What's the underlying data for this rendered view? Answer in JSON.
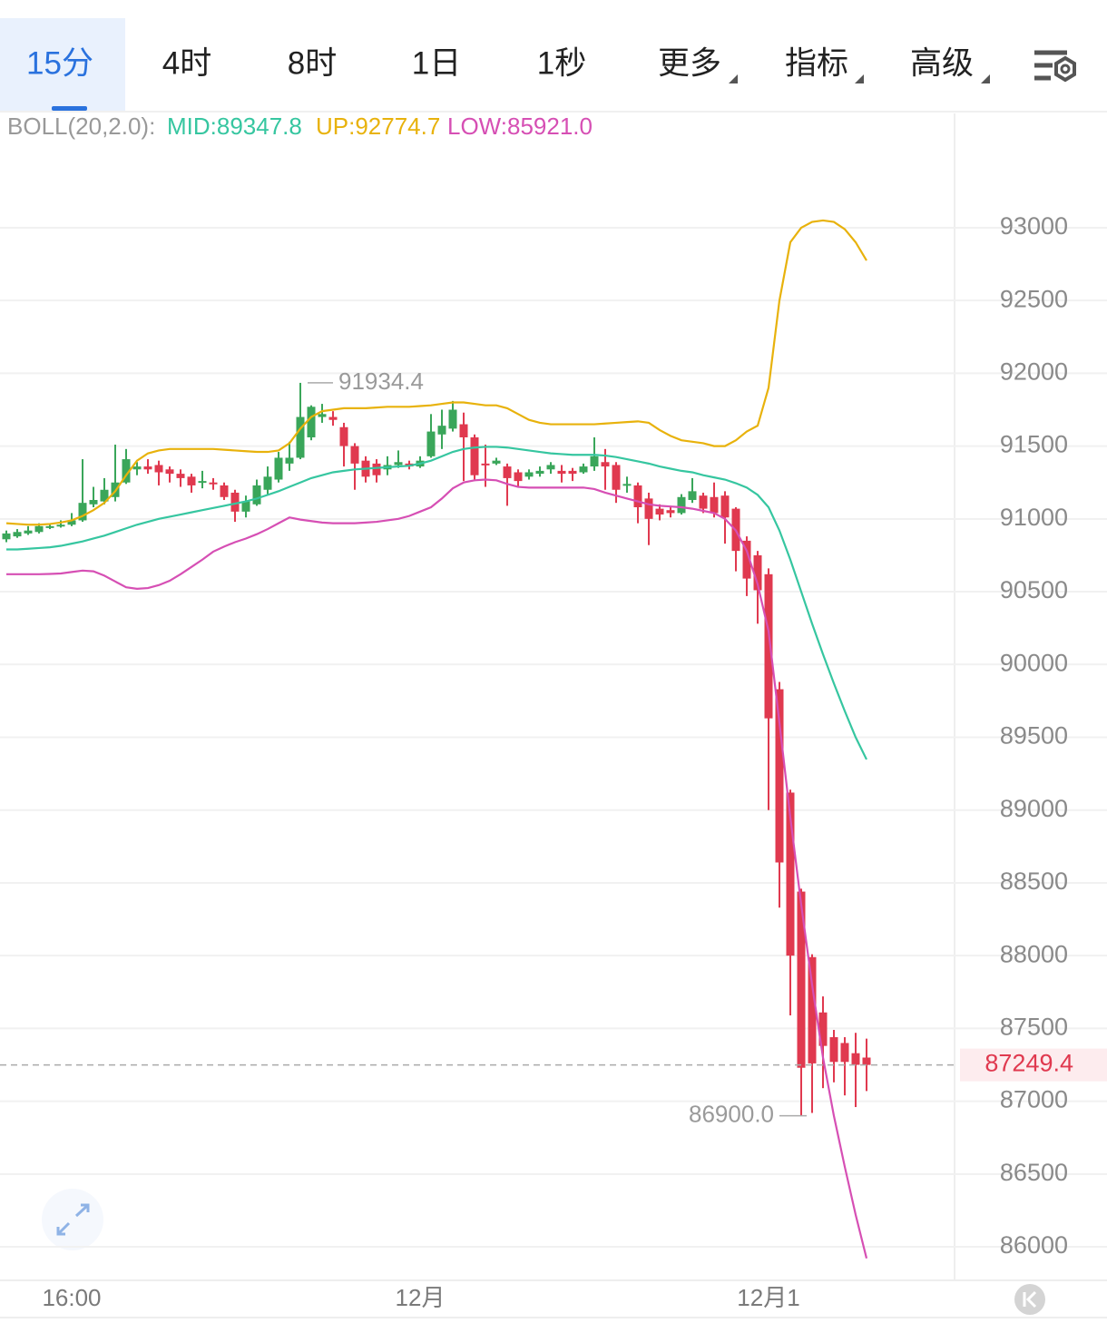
{
  "toolbar": {
    "tabs": [
      "15分",
      "4时",
      "8时",
      "1日",
      "1秒",
      "更多",
      "指标",
      "高级"
    ],
    "active": 0
  },
  "chart_data": {
    "type": "candlestick",
    "indicator": "BOLL(20,2.0):",
    "categories": [
      null,
      null,
      null,
      null,
      null,
      null,
      "16:00",
      null,
      null,
      null,
      null,
      null,
      null,
      null,
      null,
      null,
      null,
      null,
      null,
      null,
      null,
      null,
      null,
      null,
      null,
      null,
      null,
      null,
      null,
      null,
      null,
      null,
      null,
      null,
      null,
      null,
      null,
      null,
      "12月",
      null,
      null,
      null,
      null,
      null,
      null,
      null,
      null,
      null,
      null,
      null,
      null,
      null,
      null,
      null,
      null,
      null,
      null,
      null,
      null,
      null,
      null,
      null,
      null,
      null,
      null,
      null,
      null,
      null,
      null,
      null,
      "12月1",
      null,
      null,
      null,
      null,
      null,
      null,
      null,
      null,
      null
    ],
    "open": [
      90860,
      90880,
      90900,
      90910,
      90940,
      90950,
      90960,
      90990,
      91100,
      91120,
      91150,
      91250,
      91340,
      91360,
      91370,
      91340,
      91310,
      91290,
      91250,
      91250,
      91230,
      91180,
      91050,
      91100,
      91200,
      91270,
      91380,
      91420,
      91560,
      91700,
      91700,
      91630,
      91500,
      91400,
      91380,
      91340,
      91370,
      91380,
      91360,
      91430,
      91580,
      91620,
      91650,
      91560,
      91380,
      91380,
      91360,
      91320,
      91290,
      91310,
      91340,
      91330,
      91330,
      91320,
      91360,
      91390,
      91370,
      91230,
      91230,
      91140,
      91070,
      91060,
      91040,
      91130,
      91160,
      91150,
      91160,
      91070,
      90850,
      90750,
      90620,
      89830,
      89120,
      88440,
      87990,
      87610,
      87440,
      87400,
      87330,
      87300
    ],
    "high": [
      90920,
      90930,
      90950,
      90970,
      90960,
      90990,
      91040,
      91410,
      91220,
      91280,
      91510,
      91480,
      91390,
      91410,
      91400,
      91360,
      91340,
      91310,
      91330,
      91280,
      91250,
      91200,
      91160,
      91270,
      91360,
      91460,
      91530,
      91934.4,
      91780,
      91790,
      91740,
      91660,
      91520,
      91430,
      91410,
      91430,
      91470,
      91400,
      91430,
      91720,
      91750,
      91810,
      91730,
      91580,
      91510,
      91420,
      91380,
      91340,
      91340,
      91360,
      91390,
      91370,
      91350,
      91380,
      91560,
      91480,
      91390,
      91290,
      91250,
      91180,
      91100,
      91090,
      91170,
      91280,
      91180,
      91250,
      91190,
      91080,
      90880,
      90780,
      90660,
      89880,
      89140,
      88460,
      88010,
      87720,
      87490,
      87440,
      87470,
      87430
    ],
    "low": [
      90840,
      90870,
      90890,
      90900,
      90930,
      90940,
      90950,
      90980,
      91080,
      91100,
      91120,
      91240,
      91300,
      91310,
      91230,
      91250,
      91220,
      91180,
      91210,
      91200,
      91130,
      90980,
      91010,
      91090,
      91170,
      91250,
      91330,
      91410,
      91540,
      91660,
      91640,
      91360,
      91200,
      91250,
      91250,
      91300,
      91350,
      91340,
      91350,
      91420,
      91480,
      91600,
      91260,
      91260,
      91220,
      91370,
      91090,
      91220,
      91270,
      91290,
      91310,
      91250,
      91260,
      91310,
      91330,
      91200,
      91110,
      91180,
      90970,
      90820,
      90990,
      91010,
      91030,
      91110,
      91040,
      91010,
      90830,
      90640,
      90470,
      90280,
      89000,
      88330,
      87590,
      86900,
      86920,
      87090,
      87130,
      87040,
      86960,
      87070
    ],
    "close": [
      90900,
      90910,
      90920,
      90950,
      90950,
      90960,
      90990,
      91110,
      91130,
      91200,
      91250,
      91410,
      91360,
      91340,
      91320,
      91310,
      91280,
      91230,
      91260,
      91240,
      91150,
      91050,
      91120,
      91230,
      91290,
      91420,
      91420,
      91700,
      91770,
      91720,
      91680,
      91500,
      91380,
      91290,
      91300,
      91370,
      91390,
      91360,
      91400,
      91600,
      91640,
      91750,
      91560,
      91300,
      91370,
      91400,
      91280,
      91260,
      91320,
      91330,
      91370,
      91310,
      91310,
      91360,
      91430,
      91360,
      91200,
      91240,
      91080,
      91000,
      91030,
      91040,
      91150,
      91190,
      91070,
      91040,
      91010,
      90780,
      90590,
      90510,
      89630,
      88640,
      88000,
      87230,
      87260,
      87380,
      87270,
      87270,
      87250,
      87249.4
    ],
    "up_color": "#3aa65a",
    "down_color": "#e0394f",
    "overlays": [
      {
        "label": "MID:89347.8",
        "color": "#36c6a0",
        "values": [
          90790,
          90790,
          90795,
          90800,
          90805,
          90815,
          90830,
          90845,
          90865,
          90885,
          90910,
          90935,
          90960,
          90980,
          91000,
          91015,
          91030,
          91045,
          91060,
          91075,
          91090,
          91105,
          91120,
          91140,
          91165,
          91190,
          91220,
          91250,
          91280,
          91300,
          91320,
          91330,
          91340,
          91345,
          91350,
          91355,
          91360,
          91365,
          91380,
          91400,
          91430,
          91460,
          91480,
          91490,
          91495,
          91495,
          91490,
          91480,
          91470,
          91460,
          91450,
          91445,
          91440,
          91440,
          91440,
          91435,
          91425,
          91410,
          91395,
          91380,
          91360,
          91345,
          91330,
          91320,
          91300,
          91285,
          91270,
          91245,
          91215,
          91165,
          91080,
          90920,
          90720,
          90500,
          90280,
          90070,
          89870,
          89680,
          89500,
          89347.8
        ]
      },
      {
        "label": "UP:92774.7",
        "color": "#e8b20c",
        "values": [
          90970,
          90965,
          90960,
          90960,
          90965,
          90975,
          90990,
          91020,
          91060,
          91110,
          91190,
          91300,
          91400,
          91450,
          91470,
          91480,
          91480,
          91480,
          91480,
          91480,
          91475,
          91470,
          91465,
          91460,
          91460,
          91470,
          91520,
          91620,
          91700,
          91740,
          91750,
          91760,
          91760,
          91760,
          91765,
          91770,
          91770,
          91770,
          91775,
          91780,
          91790,
          91800,
          91800,
          91790,
          91780,
          91780,
          91760,
          91720,
          91680,
          91660,
          91650,
          91650,
          91650,
          91650,
          91650,
          91655,
          91660,
          91665,
          91670,
          91660,
          91610,
          91570,
          91540,
          91530,
          91520,
          91500,
          91500,
          91540,
          91600,
          91640,
          91900,
          92500,
          92900,
          93000,
          93040,
          93050,
          93040,
          92990,
          92900,
          92774.7
        ]
      },
      {
        "label": "LOW:85921.0",
        "color": "#d64fb4",
        "values": [
          90620,
          90620,
          90620,
          90620,
          90622,
          90625,
          90635,
          90645,
          90640,
          90610,
          90570,
          90530,
          90520,
          90525,
          90545,
          90575,
          90620,
          90670,
          90720,
          90775,
          90810,
          90840,
          90865,
          90895,
          90930,
          90970,
          91010,
          90995,
          90985,
          90975,
          90970,
          90970,
          90970,
          90975,
          90980,
          90990,
          91000,
          91020,
          91050,
          91080,
          91140,
          91210,
          91250,
          91265,
          91270,
          91265,
          91240,
          91220,
          91215,
          91215,
          91215,
          91215,
          91215,
          91215,
          91205,
          91180,
          91160,
          91140,
          91120,
          91100,
          91090,
          91085,
          91080,
          91070,
          91055,
          91040,
          91000,
          90920,
          90780,
          90550,
          90230,
          89600,
          88950,
          88350,
          87800,
          87300,
          86900,
          86550,
          86220,
          85921.0
        ]
      }
    ],
    "high_label": {
      "index": 27,
      "value": 91934.4,
      "label": "91934.4"
    },
    "low_label": {
      "index": 73,
      "value": 86900,
      "label": "86900.0"
    },
    "last_price": 87249.4,
    "ylim": [
      85776,
      93785
    ],
    "yticks": [
      86000,
      86500,
      87000,
      87500,
      88000,
      88500,
      89000,
      89500,
      90000,
      90500,
      91000,
      91500,
      92000,
      92500,
      93000
    ],
    "grid": true
  }
}
